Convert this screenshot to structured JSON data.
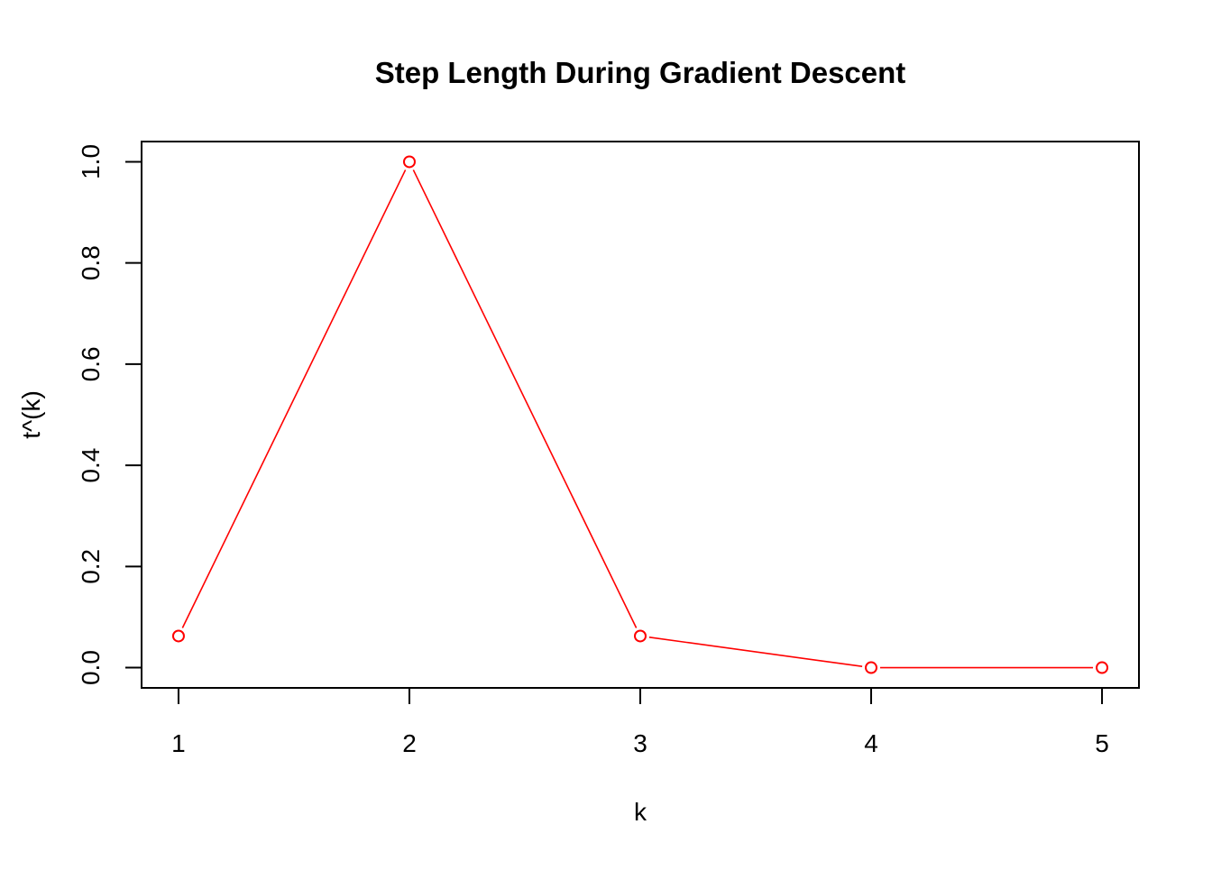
{
  "chart_data": {
    "type": "line",
    "title": "Step Length During Gradient Descent",
    "xlabel": "k",
    "ylabel": "t^(k)",
    "x": [
      1,
      2,
      3,
      4,
      5
    ],
    "series": [
      {
        "values": [
          0.0625,
          1.0,
          0.0625,
          0.0,
          0.0
        ],
        "color": "#ff0000",
        "style": "both",
        "marker": "open-circle"
      }
    ],
    "xlim": [
      0.84,
      5.16
    ],
    "ylim": [
      -0.04,
      1.04
    ],
    "xticks": [
      1,
      2,
      3,
      4,
      5
    ],
    "xtick_labels": [
      "1",
      "2",
      "3",
      "4",
      "5"
    ],
    "yticks": [
      0,
      0.2,
      0.4,
      0.6,
      0.8,
      1.0
    ],
    "ytick_labels": [
      "0.0",
      "0.2",
      "0.4",
      "0.6",
      "0.8",
      "1.0"
    ],
    "grid": false,
    "legend": "none"
  }
}
